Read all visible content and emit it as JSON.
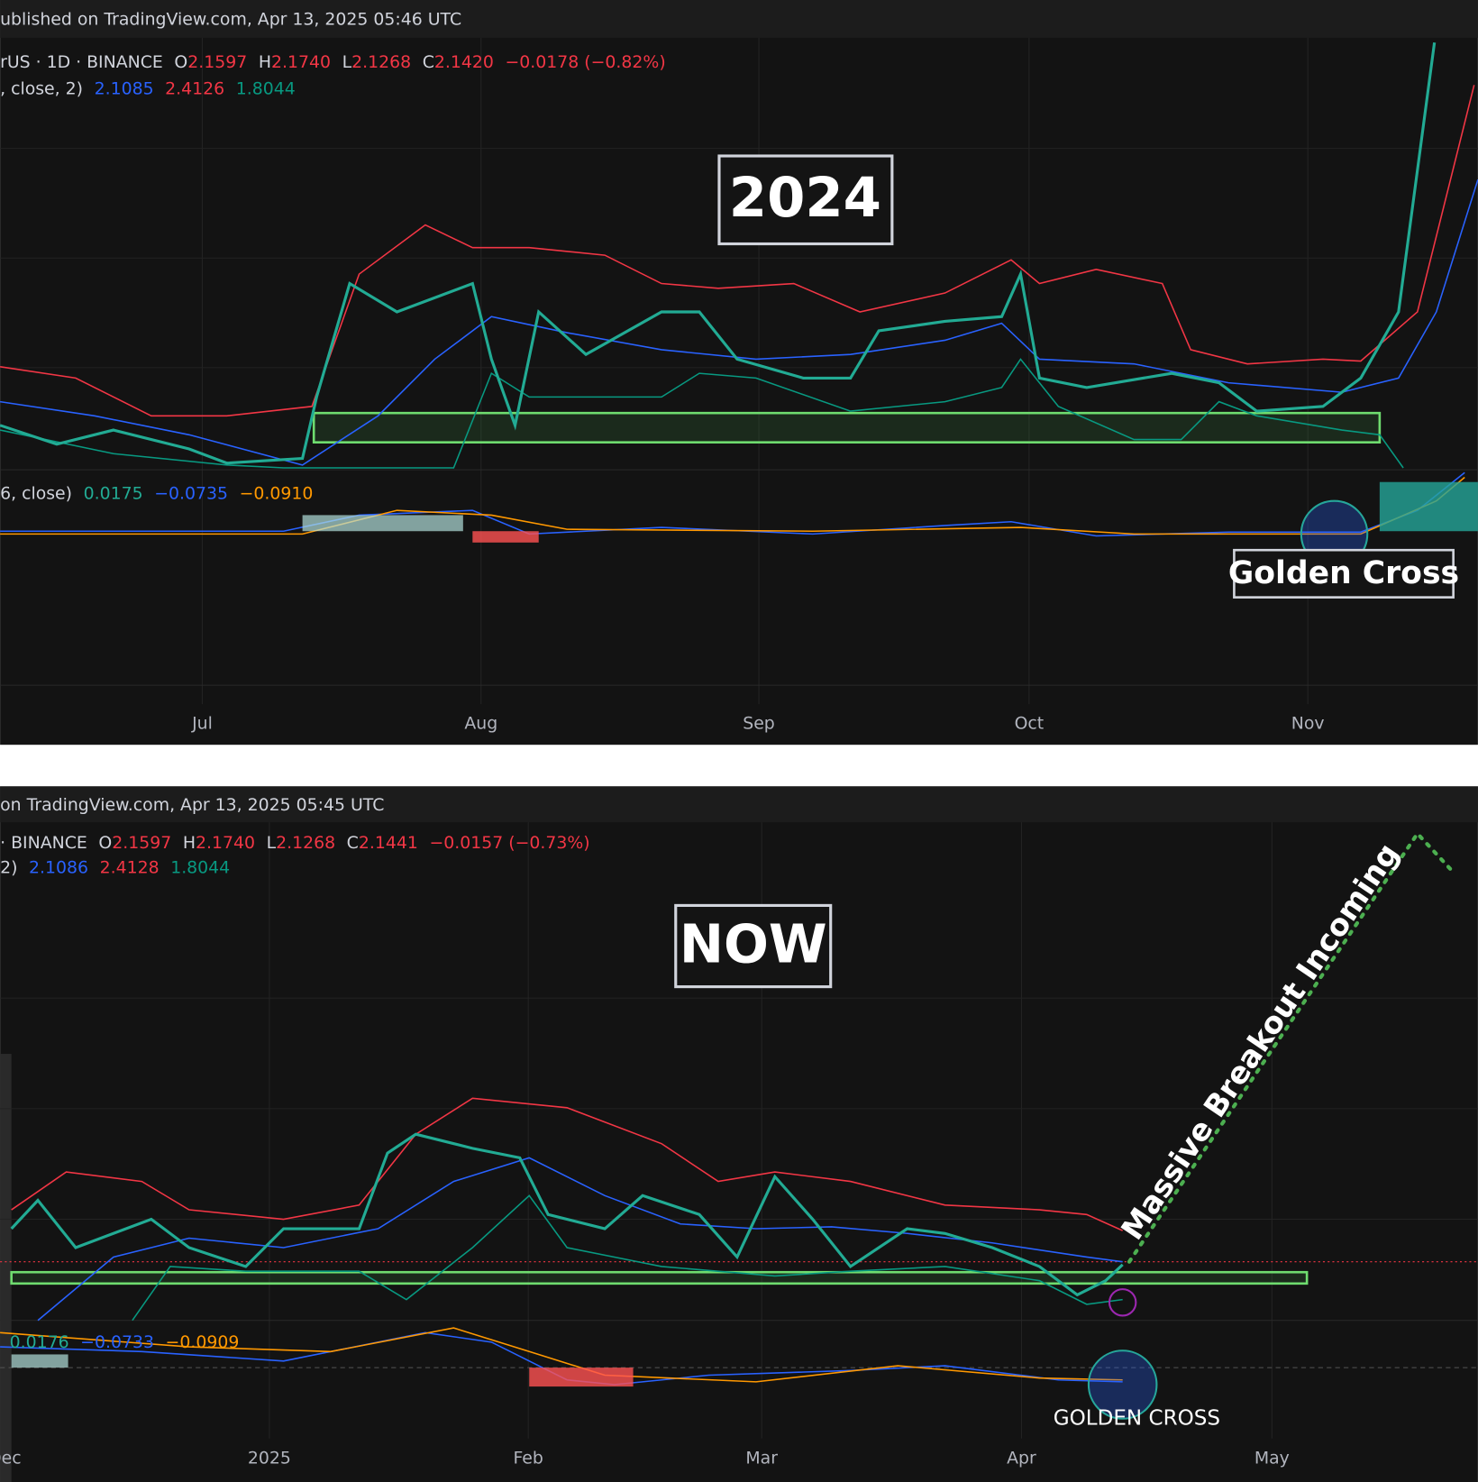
{
  "top_panel": {
    "published": "ublished on TradingView.com, Apr 13, 2025 05:46 UTC",
    "symbol": "rUS · 1D · BINANCE",
    "open_label": "O",
    "open": "2.1597",
    "high_label": "H",
    "high": "2.1740",
    "low_label": "L",
    "low": "2.1268",
    "close_label": "C",
    "close": "2.1420",
    "change": "−0.0178 (−0.82%)",
    "bb_label": ", close, 2)",
    "bb_values": [
      "2.1085",
      "2.4126",
      "1.8044"
    ],
    "macd_label": "6, close)",
    "macd_values": [
      "0.0175",
      "−0.0735",
      "−0.0910"
    ],
    "title": "2024",
    "annotation": "Golden Cross",
    "x_labels": [
      "Jul",
      "Aug",
      "Sep",
      "Oct",
      "Nov"
    ]
  },
  "bottom_panel": {
    "published": "on TradingView.com, Apr 13, 2025 05:45 UTC",
    "symbol": "· BINANCE",
    "open_label": "O",
    "open": "2.1597",
    "high_label": "H",
    "high": "2.1740",
    "low_label": "L",
    "low": "2.1268",
    "close_label": "C",
    "close": "2.1441",
    "change": "−0.0157 (−0.73%)",
    "bb_label": "2)",
    "bb_values": [
      "2.1086",
      "2.4128",
      "1.8044"
    ],
    "macd_values": [
      "0.0176",
      "−0.0733",
      "−0.0909"
    ],
    "title": "NOW",
    "annotation": "Massive Breakout Incoming",
    "annotation_2": "GOLDEN CROSS",
    "x_labels": [
      "Dec",
      "2025",
      "Feb",
      "Mar",
      "Apr",
      "May"
    ]
  }
}
